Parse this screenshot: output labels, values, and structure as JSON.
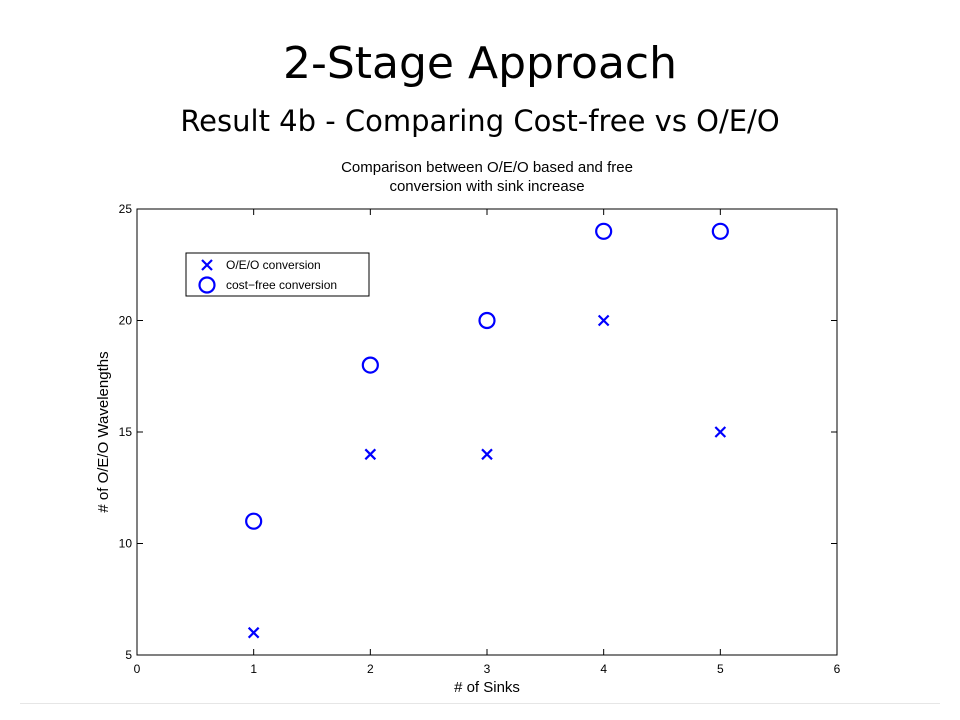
{
  "slide": {
    "title": "2-Stage Approach",
    "subtitle": "Result  4b - Comparing Cost-free vs O/E/O"
  },
  "chart_data": {
    "type": "scatter",
    "title": "Comparison between O/E/O based and free",
    "subtitle": "conversion with sink increase",
    "xlabel": "# of Sinks",
    "ylabel": "# of O/E/O Wavelengths",
    "xlim": [
      0,
      6
    ],
    "ylim": [
      5,
      25
    ],
    "xticks": [
      0,
      1,
      2,
      3,
      4,
      5,
      6
    ],
    "yticks": [
      5,
      10,
      15,
      20,
      25
    ],
    "grid": false,
    "legend_position": "top-left",
    "series": [
      {
        "name": "O/E/O conversion",
        "marker": "x",
        "color": "#0000ff",
        "points": [
          [
            1,
            6
          ],
          [
            2,
            14
          ],
          [
            3,
            14
          ],
          [
            4,
            20
          ],
          [
            5,
            15
          ]
        ]
      },
      {
        "name": "cost−free conversion",
        "marker": "o",
        "color": "#0000ff",
        "points": [
          [
            1,
            11
          ],
          [
            2,
            18
          ],
          [
            3,
            20
          ],
          [
            4,
            24
          ],
          [
            5,
            24
          ]
        ]
      }
    ]
  }
}
